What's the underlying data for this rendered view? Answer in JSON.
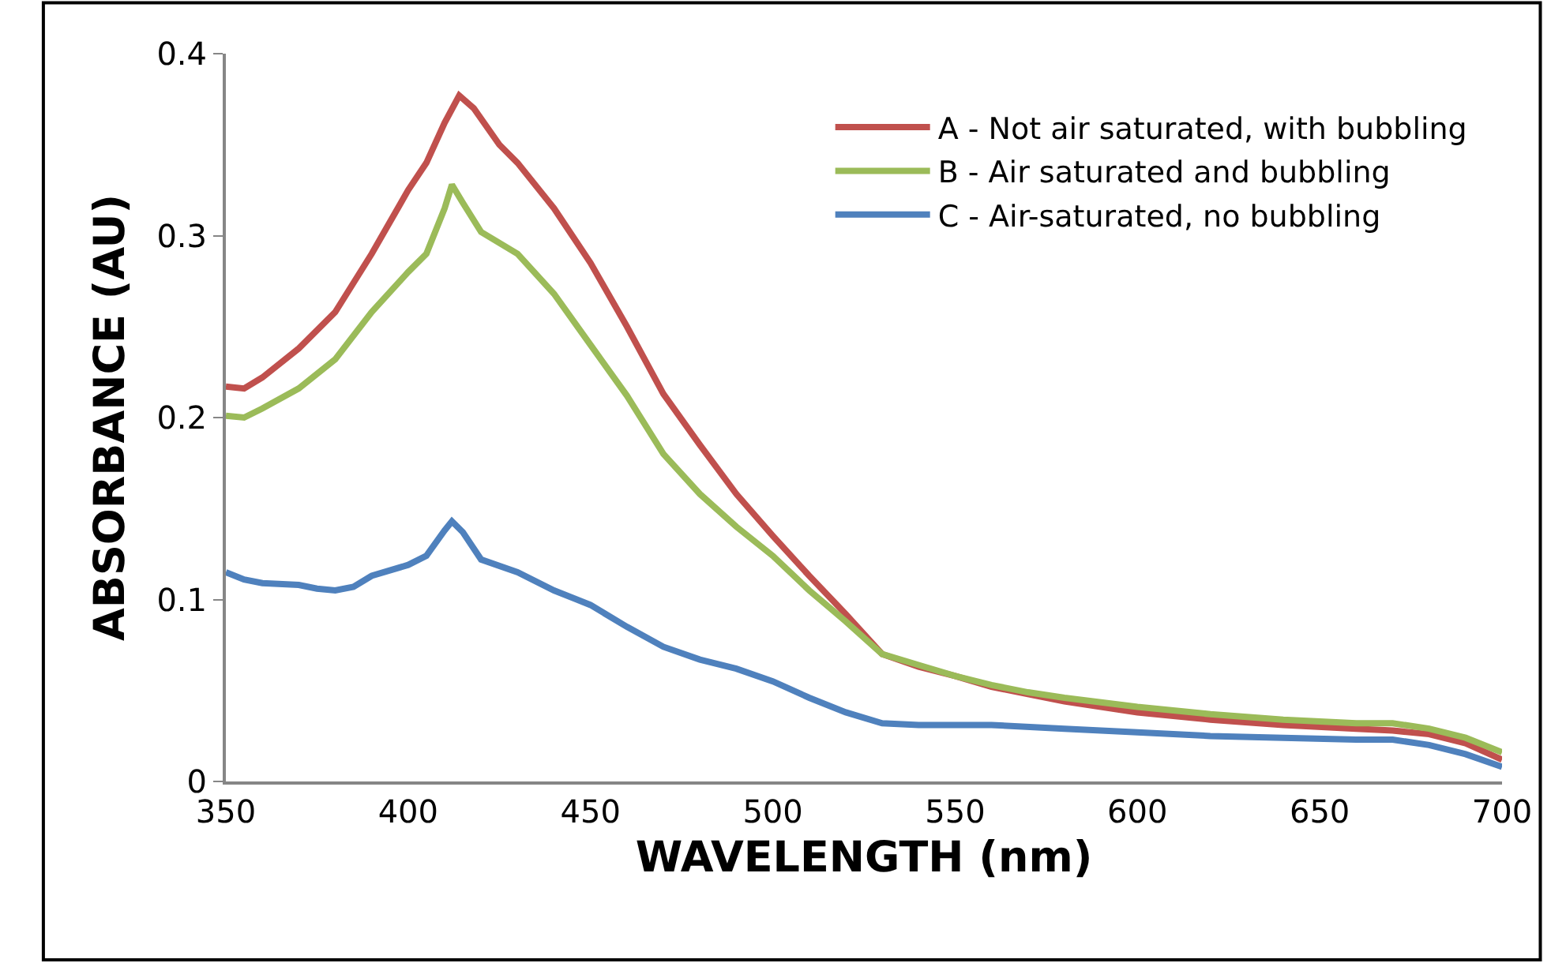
{
  "chart_data": {
    "type": "line",
    "xlabel": "WAVELENGTH (nm)",
    "ylabel": "ABSORBANCE (AU)",
    "xlim": [
      350,
      700
    ],
    "xticks": [
      350,
      400,
      450,
      500,
      550,
      600,
      650,
      700
    ],
    "ylim": [
      0,
      0.4
    ],
    "yticks": [
      0,
      0.1,
      0.2,
      0.3,
      0.4
    ],
    "legend": "top right",
    "marker": "none",
    "line_style": "solid",
    "series": [
      {
        "name": "A - Not air saturated, with bubbling",
        "color": "#c0504d",
        "x": [
          350,
          355,
          360,
          370,
          380,
          390,
          400,
          405,
          410,
          414,
          418,
          425,
          430,
          440,
          450,
          460,
          470,
          480,
          490,
          500,
          510,
          520,
          530,
          540,
          550,
          560,
          570,
          580,
          600,
          620,
          640,
          660,
          670,
          680,
          690,
          700
        ],
        "values": [
          0.217,
          0.216,
          0.222,
          0.238,
          0.258,
          0.29,
          0.325,
          0.34,
          0.362,
          0.377,
          0.37,
          0.35,
          0.34,
          0.315,
          0.285,
          0.25,
          0.213,
          0.185,
          0.158,
          0.135,
          0.113,
          0.092,
          0.07,
          0.063,
          0.058,
          0.052,
          0.048,
          0.044,
          0.038,
          0.034,
          0.031,
          0.029,
          0.028,
          0.026,
          0.021,
          0.012
        ]
      },
      {
        "name": "B - Air saturated and bubbling",
        "color": "#9bbb59",
        "x": [
          350,
          355,
          360,
          370,
          380,
          390,
          400,
          405,
          410,
          412,
          415,
          420,
          430,
          440,
          450,
          460,
          470,
          480,
          490,
          500,
          510,
          520,
          530,
          540,
          550,
          560,
          570,
          580,
          600,
          620,
          640,
          660,
          670,
          680,
          690,
          700
        ],
        "values": [
          0.201,
          0.2,
          0.205,
          0.216,
          0.232,
          0.258,
          0.28,
          0.29,
          0.315,
          0.328,
          0.318,
          0.302,
          0.29,
          0.268,
          0.24,
          0.212,
          0.18,
          0.158,
          0.14,
          0.124,
          0.105,
          0.088,
          0.07,
          0.064,
          0.058,
          0.053,
          0.049,
          0.046,
          0.041,
          0.037,
          0.034,
          0.032,
          0.032,
          0.029,
          0.024,
          0.016
        ]
      },
      {
        "name": "C - Air-saturated, no bubbling",
        "color": "#4f81bd",
        "x": [
          350,
          355,
          360,
          370,
          375,
          380,
          385,
          390,
          400,
          405,
          410,
          412,
          415,
          420,
          430,
          440,
          450,
          460,
          470,
          480,
          490,
          500,
          510,
          520,
          530,
          540,
          560,
          580,
          600,
          620,
          640,
          660,
          670,
          680,
          690,
          700
        ],
        "values": [
          0.115,
          0.111,
          0.109,
          0.108,
          0.106,
          0.105,
          0.107,
          0.113,
          0.119,
          0.124,
          0.138,
          0.143,
          0.137,
          0.122,
          0.115,
          0.105,
          0.097,
          0.085,
          0.074,
          0.067,
          0.062,
          0.055,
          0.046,
          0.038,
          0.032,
          0.031,
          0.031,
          0.029,
          0.027,
          0.025,
          0.024,
          0.023,
          0.023,
          0.02,
          0.015,
          0.008
        ]
      }
    ]
  }
}
